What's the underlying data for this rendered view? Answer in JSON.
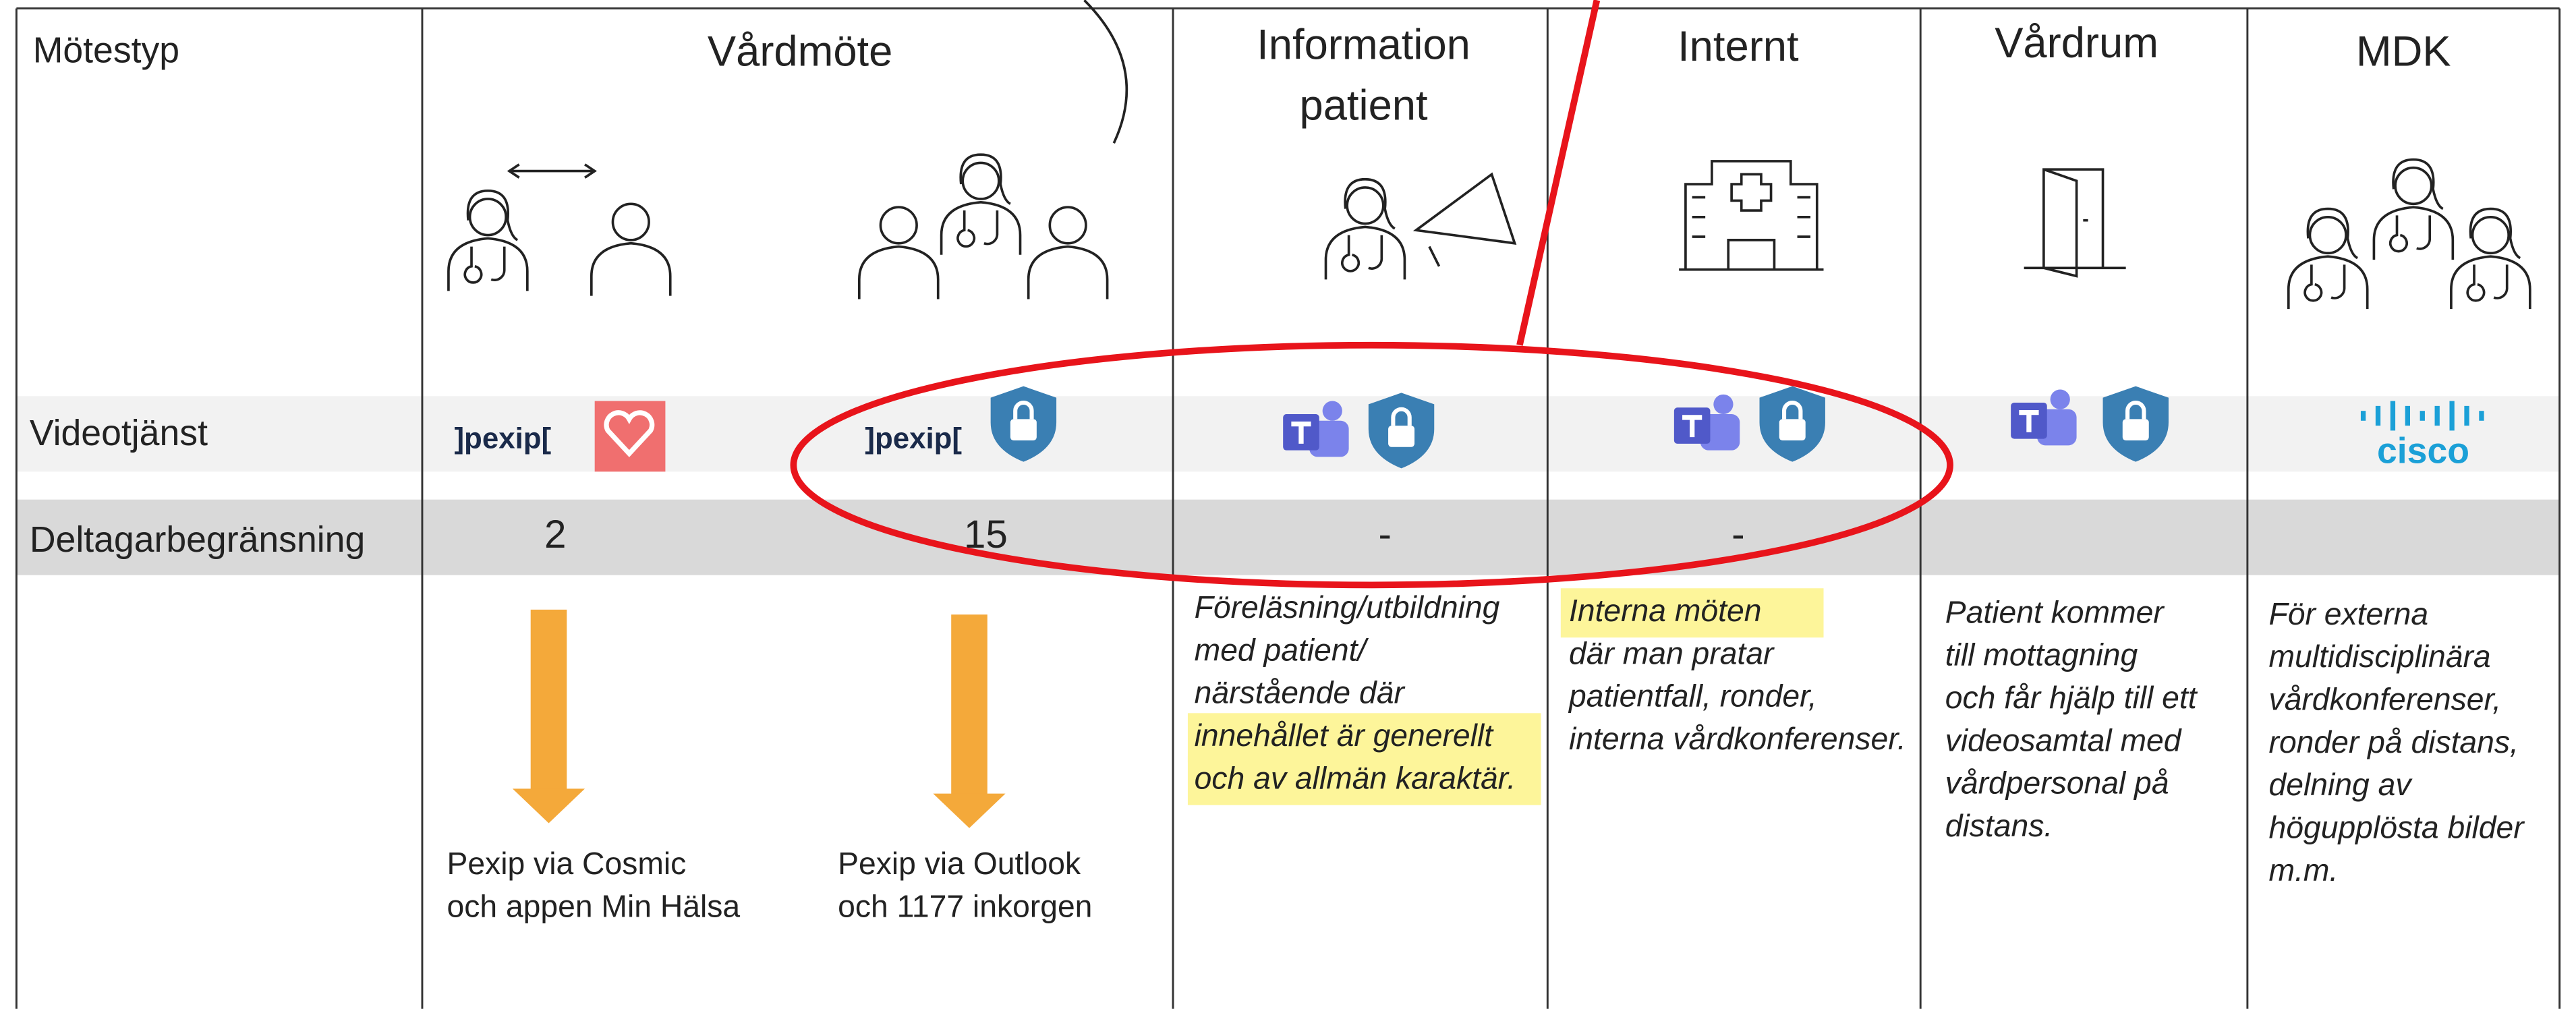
{
  "row_labels": {
    "meeting_type": "Mötestyp",
    "video_service": "Videotjänst",
    "participant_limit": "Deltagarbegränsning"
  },
  "vardmote": {
    "title": "Vårdmöte",
    "options": [
      {
        "logo_text": "]pexip[",
        "limit": 2,
        "note": [
          "Pexip via Cosmic",
          "och appen Min Hälsa"
        ]
      },
      {
        "logo_text": "]pexip[",
        "limit": 15,
        "note": [
          "Pexip via Outlook",
          "och 1177 inkorgen"
        ]
      }
    ]
  },
  "columns": [
    {
      "title": [
        "Information",
        "patient"
      ],
      "limit": "-",
      "description": [
        "Föreläsning/utbildning",
        "med patient/",
        "närstående där",
        "innehållet är generellt",
        "och av allmän karaktär."
      ],
      "highlight": [
        3,
        4
      ]
    },
    {
      "title": [
        "Internt"
      ],
      "limit": "-",
      "description": [
        "Interna möten",
        "där man pratar",
        "patientfall, ronder,",
        "interna vårdkonferenser."
      ],
      "highlight": [
        0
      ]
    },
    {
      "title": [
        "Vårdrum"
      ],
      "description": [
        "Patient kommer",
        "till mottagning",
        "och får hjälp till ett",
        "videosamtal med",
        "vårdpersonal på",
        "distans."
      ],
      "highlight": []
    },
    {
      "title": [
        "MDK"
      ],
      "logo_text": "cisco",
      "description": [
        "För externa",
        "multidisciplinära",
        "vårdkonferenser,",
        "ronder på distans,",
        "delning av",
        "högupplösta bilder",
        "m.m."
      ],
      "highlight": []
    }
  ]
}
